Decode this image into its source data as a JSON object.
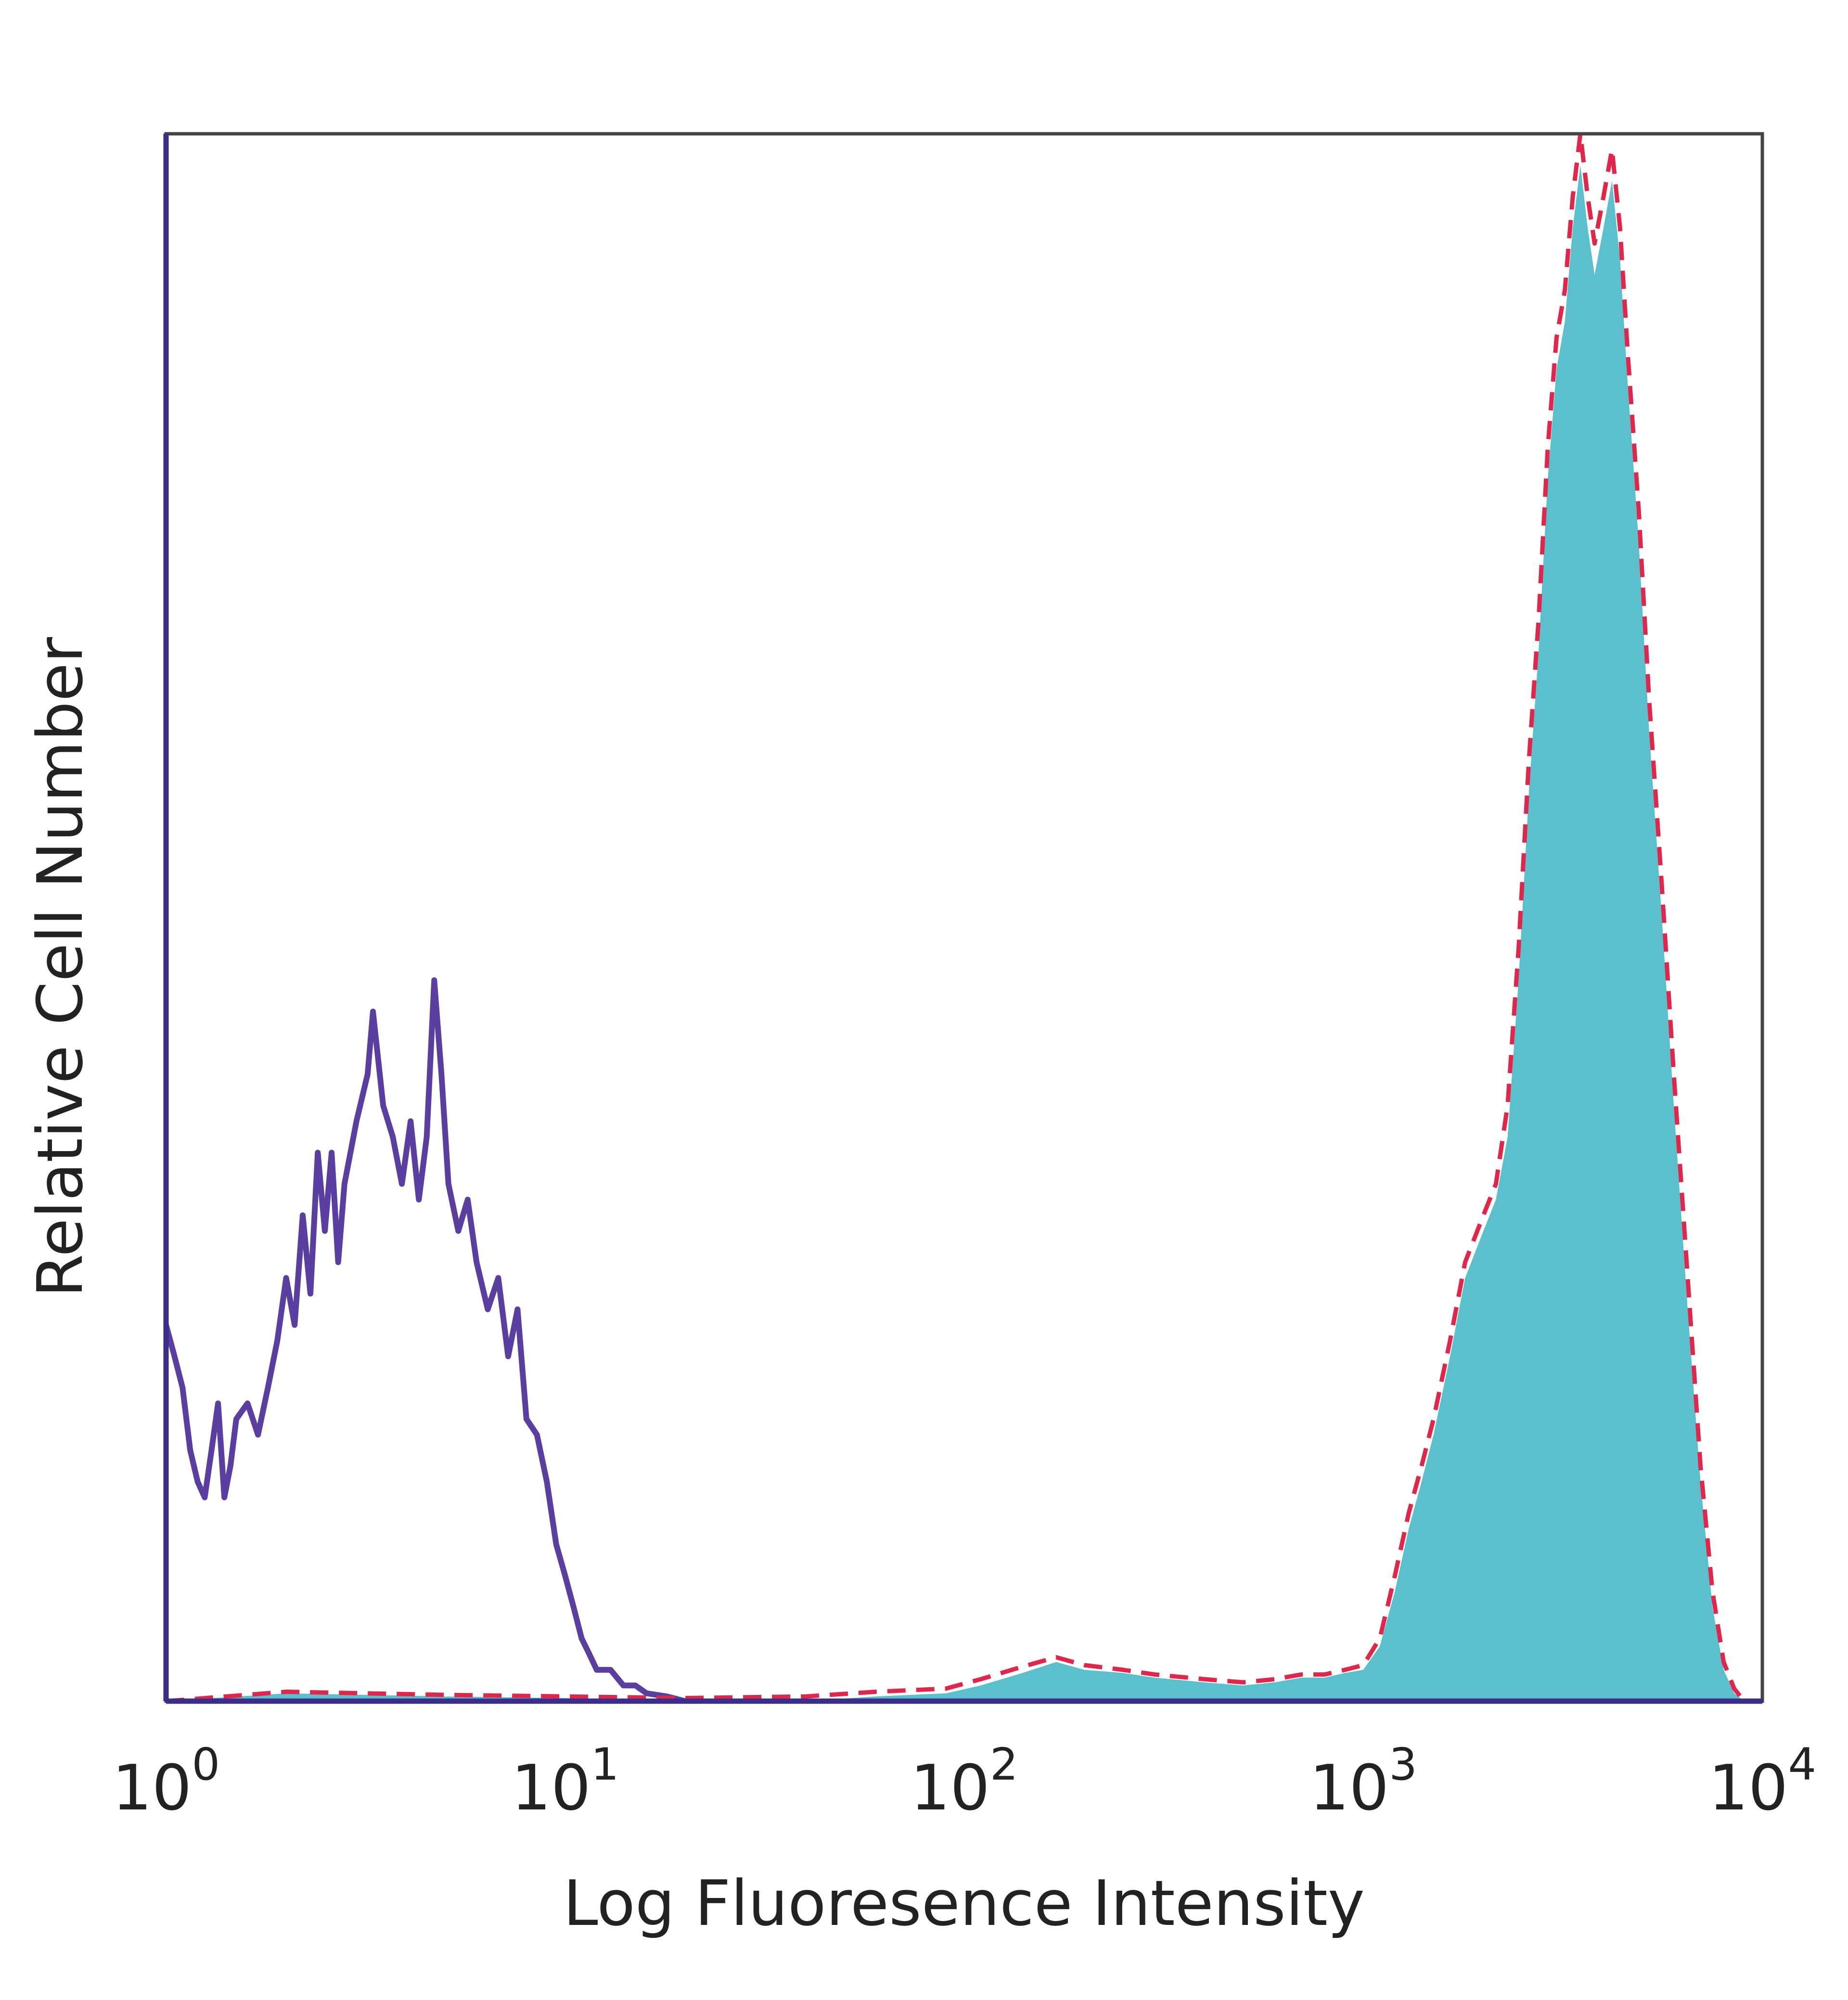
{
  "chart_data": {
    "type": "area",
    "title": "",
    "xlabel": "Log Fluoresence Intensity",
    "ylabel": "Relative Cell Number",
    "x_scale": "log",
    "xlim": [
      1,
      10000
    ],
    "ylim": [
      0,
      100
    ],
    "grid": false,
    "legend": "none",
    "x_ticks": [
      {
        "base": "10",
        "exp": "0",
        "value": 1
      },
      {
        "base": "10",
        "exp": "1",
        "value": 10
      },
      {
        "base": "10",
        "exp": "2",
        "value": 100
      },
      {
        "base": "10",
        "exp": "3",
        "value": 1000
      },
      {
        "base": "10",
        "exp": "4",
        "value": 10000
      }
    ],
    "series": [
      {
        "style": "line",
        "color": "#5a3fa0",
        "points": [
          [
            1.0,
            24
          ],
          [
            1.05,
            22
          ],
          [
            1.1,
            20
          ],
          [
            1.15,
            16
          ],
          [
            1.2,
            14
          ],
          [
            1.25,
            13
          ],
          [
            1.3,
            16
          ],
          [
            1.35,
            19
          ],
          [
            1.4,
            13
          ],
          [
            1.45,
            15
          ],
          [
            1.5,
            18
          ],
          [
            1.6,
            19
          ],
          [
            1.7,
            17
          ],
          [
            1.8,
            20
          ],
          [
            1.9,
            23
          ],
          [
            2.0,
            27
          ],
          [
            2.1,
            24
          ],
          [
            2.2,
            31
          ],
          [
            2.3,
            26
          ],
          [
            2.4,
            35
          ],
          [
            2.5,
            30
          ],
          [
            2.6,
            35
          ],
          [
            2.7,
            28
          ],
          [
            2.8,
            33
          ],
          [
            3.0,
            37
          ],
          [
            3.2,
            40
          ],
          [
            3.3,
            44
          ],
          [
            3.5,
            38
          ],
          [
            3.7,
            36
          ],
          [
            3.9,
            33
          ],
          [
            4.1,
            37
          ],
          [
            4.3,
            32
          ],
          [
            4.5,
            36
          ],
          [
            4.7,
            46
          ],
          [
            4.9,
            40
          ],
          [
            5.1,
            33
          ],
          [
            5.4,
            30
          ],
          [
            5.7,
            32
          ],
          [
            6.0,
            28
          ],
          [
            6.4,
            25
          ],
          [
            6.8,
            27
          ],
          [
            7.2,
            22
          ],
          [
            7.6,
            25
          ],
          [
            8.0,
            18
          ],
          [
            8.5,
            17
          ],
          [
            9.0,
            14
          ],
          [
            9.5,
            10
          ],
          [
            10.0,
            8
          ],
          [
            10.5,
            6
          ],
          [
            11.0,
            4
          ],
          [
            11.5,
            3
          ],
          [
            12.0,
            2
          ],
          [
            13.0,
            2
          ],
          [
            14.0,
            1
          ],
          [
            15.0,
            1
          ],
          [
            16.0,
            0.5
          ],
          [
            18.0,
            0.3
          ],
          [
            20.0,
            0
          ]
        ]
      },
      {
        "style": "filled",
        "color": "#5bc0cc",
        "points": [
          [
            1.0,
            0
          ],
          [
            2.0,
            0.5
          ],
          [
            5.0,
            0.3
          ],
          [
            10.0,
            0.2
          ],
          [
            20.0,
            0
          ],
          [
            40.0,
            0
          ],
          [
            60.0,
            0.3
          ],
          [
            90.0,
            0.5
          ],
          [
            110.0,
            1
          ],
          [
            140.0,
            1.8
          ],
          [
            170.0,
            2.5
          ],
          [
            200.0,
            2.0
          ],
          [
            250.0,
            1.8
          ],
          [
            300.0,
            1.5
          ],
          [
            400.0,
            1.2
          ],
          [
            500.0,
            1.0
          ],
          [
            600.0,
            1.2
          ],
          [
            700.0,
            1.5
          ],
          [
            800.0,
            1.5
          ],
          [
            900.0,
            1.8
          ],
          [
            1000.0,
            2.0
          ],
          [
            1100.0,
            3.5
          ],
          [
            1200.0,
            7
          ],
          [
            1300.0,
            11
          ],
          [
            1400.0,
            14
          ],
          [
            1500.0,
            17
          ],
          [
            1650.0,
            22
          ],
          [
            1800.0,
            27
          ],
          [
            2000.0,
            30
          ],
          [
            2150.0,
            32
          ],
          [
            2300.0,
            36
          ],
          [
            2450.0,
            46
          ],
          [
            2600.0,
            58
          ],
          [
            2750.0,
            67
          ],
          [
            2900.0,
            78
          ],
          [
            3050.0,
            85
          ],
          [
            3200.0,
            88
          ],
          [
            3350.0,
            94
          ],
          [
            3500.0,
            98
          ],
          [
            3650.0,
            94
          ],
          [
            3800.0,
            91
          ],
          [
            4000.0,
            94
          ],
          [
            4200.0,
            97
          ],
          [
            4400.0,
            92
          ],
          [
            4600.0,
            84
          ],
          [
            4900.0,
            74
          ],
          [
            5200.0,
            62
          ],
          [
            5600.0,
            50
          ],
          [
            6000.0,
            38
          ],
          [
            6500.0,
            25
          ],
          [
            7000.0,
            14
          ],
          [
            7500.0,
            6
          ],
          [
            8000.0,
            2
          ],
          [
            8500.0,
            0.5
          ],
          [
            9000.0,
            0
          ]
        ]
      },
      {
        "style": "dashed",
        "color": "#e0264a",
        "points": [
          [
            1.0,
            0
          ],
          [
            2.0,
            0.6
          ],
          [
            5.0,
            0.4
          ],
          [
            10.0,
            0.3
          ],
          [
            20.0,
            0.2
          ],
          [
            40.0,
            0.3
          ],
          [
            60.0,
            0.6
          ],
          [
            90.0,
            0.8
          ],
          [
            110.0,
            1.4
          ],
          [
            140.0,
            2.2
          ],
          [
            170.0,
            2.8
          ],
          [
            200.0,
            2.3
          ],
          [
            250.0,
            2.0
          ],
          [
            300.0,
            1.7
          ],
          [
            400.0,
            1.4
          ],
          [
            500.0,
            1.2
          ],
          [
            600.0,
            1.4
          ],
          [
            700.0,
            1.7
          ],
          [
            800.0,
            1.7
          ],
          [
            900.0,
            2.0
          ],
          [
            1000.0,
            2.3
          ],
          [
            1100.0,
            4
          ],
          [
            1200.0,
            8
          ],
          [
            1300.0,
            12
          ],
          [
            1400.0,
            15
          ],
          [
            1500.0,
            18
          ],
          [
            1650.0,
            23
          ],
          [
            1800.0,
            28
          ],
          [
            2000.0,
            31
          ],
          [
            2150.0,
            33
          ],
          [
            2300.0,
            38
          ],
          [
            2450.0,
            48
          ],
          [
            2600.0,
            60
          ],
          [
            2750.0,
            69
          ],
          [
            2900.0,
            80
          ],
          [
            3050.0,
            87
          ],
          [
            3200.0,
            90
          ],
          [
            3350.0,
            96
          ],
          [
            3500.0,
            100
          ],
          [
            3650.0,
            96
          ],
          [
            3800.0,
            93
          ],
          [
            4000.0,
            96
          ],
          [
            4200.0,
            99
          ],
          [
            4400.0,
            94
          ],
          [
            4600.0,
            86
          ],
          [
            4900.0,
            76
          ],
          [
            5200.0,
            64
          ],
          [
            5600.0,
            52
          ],
          [
            6000.0,
            40
          ],
          [
            6500.0,
            27
          ],
          [
            7000.0,
            15
          ],
          [
            7500.0,
            7
          ],
          [
            8000.0,
            2.5
          ],
          [
            8500.0,
            0.8
          ],
          [
            9000.0,
            0
          ]
        ]
      }
    ]
  }
}
